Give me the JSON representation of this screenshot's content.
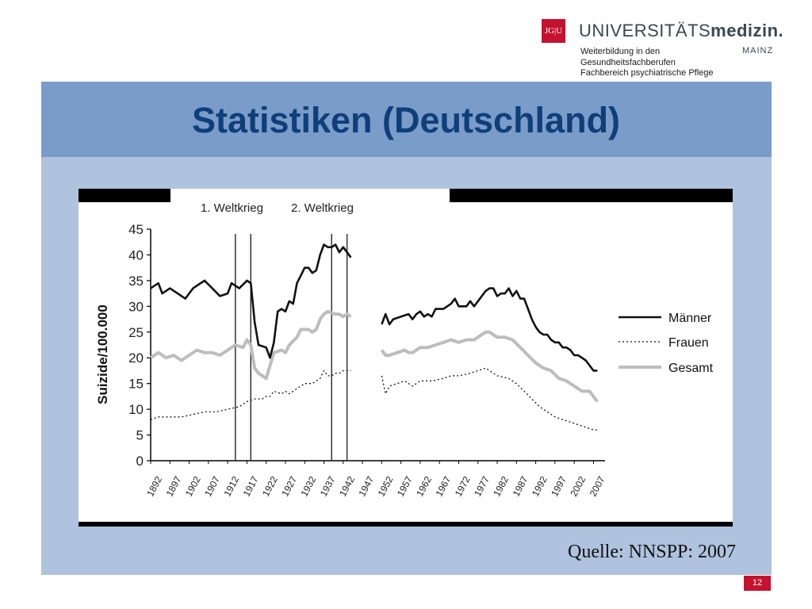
{
  "header": {
    "logo_mark": "JG|U",
    "logo_word_light": "UNIVERSITÄTS",
    "logo_word_bold": "medizin.",
    "logo_city": "MAINZ",
    "subtitle_lines": [
      "Weiterbildung in den",
      "Gesundheitsfachberufen",
      "Fachbereich psychiatrische Pflege"
    ]
  },
  "slide": {
    "title": "Statistiken (Deutschland)",
    "source": "Quelle: NNSPP: 2007",
    "page_number": "12"
  },
  "colors": {
    "title_band": "#7a9cc8",
    "content_bg": "#afc3de",
    "title_text": "#0f3f7a",
    "brand_red": "#c4122f"
  },
  "chart_data": {
    "type": "line",
    "ylabel": "Suizide/100.000",
    "xlabel": "",
    "ylim": [
      0,
      45
    ],
    "xlim": [
      1892,
      2010
    ],
    "yticks": [
      0,
      5,
      10,
      15,
      20,
      25,
      30,
      35,
      40,
      45
    ],
    "xticks": [
      1892,
      1897,
      1902,
      1907,
      1912,
      1917,
      1922,
      1927,
      1932,
      1937,
      1942,
      1947,
      1952,
      1957,
      1962,
      1967,
      1972,
      1977,
      1982,
      1987,
      1992,
      1997,
      2002,
      2007
    ],
    "annotations": [
      {
        "label": "1. Weltkrieg",
        "x_start": 1914,
        "x_end": 1918
      },
      {
        "label": "2. Weltkrieg",
        "x_start": 1939,
        "x_end": 1943
      }
    ],
    "legend_position": "right",
    "series": [
      {
        "name": "Männer",
        "style": "solid",
        "color": "#111111",
        "segments": [
          [
            [
              1892,
              33.5
            ],
            [
              1894,
              34.5
            ],
            [
              1895,
              32.5
            ],
            [
              1897,
              33.5
            ],
            [
              1899,
              32.5
            ],
            [
              1901,
              31.5
            ],
            [
              1903,
              33.5
            ],
            [
              1905,
              34.5
            ],
            [
              1906,
              35
            ],
            [
              1908,
              33.5
            ],
            [
              1910,
              32
            ],
            [
              1912,
              32.5
            ],
            [
              1913,
              34.5
            ],
            [
              1915,
              33.5
            ],
            [
              1917,
              35
            ],
            [
              1918,
              34.5
            ],
            [
              1919,
              27
            ],
            [
              1920,
              22.5
            ],
            [
              1922,
              22
            ],
            [
              1923,
              20
            ],
            [
              1924,
              23
            ],
            [
              1925,
              29
            ],
            [
              1926,
              29.5
            ],
            [
              1927,
              29
            ],
            [
              1928,
              31
            ],
            [
              1929,
              30.5
            ],
            [
              1930,
              34.5
            ],
            [
              1931,
              36
            ],
            [
              1932,
              37.5
            ],
            [
              1933,
              37.5
            ],
            [
              1934,
              36.5
            ],
            [
              1935,
              37
            ],
            [
              1936,
              40
            ],
            [
              1937,
              42
            ],
            [
              1938,
              41.5
            ],
            [
              1939,
              41.5
            ],
            [
              1940,
              42
            ],
            [
              1941,
              40.5
            ],
            [
              1942,
              41.5
            ],
            [
              1943,
              40.5
            ],
            [
              1944,
              39.5
            ]
          ],
          [
            [
              1952,
              26.5
            ],
            [
              1953,
              28.5
            ],
            [
              1954,
              26.5
            ],
            [
              1955,
              27.5
            ],
            [
              1957,
              28
            ],
            [
              1959,
              28.5
            ],
            [
              1960,
              27.5
            ],
            [
              1961,
              28.5
            ],
            [
              1962,
              29
            ],
            [
              1963,
              28
            ],
            [
              1964,
              28.5
            ],
            [
              1965,
              28
            ],
            [
              1966,
              29.5
            ],
            [
              1968,
              29.5
            ],
            [
              1970,
              30.5
            ],
            [
              1971,
              31.5
            ],
            [
              1972,
              30
            ],
            [
              1974,
              30
            ],
            [
              1975,
              31
            ],
            [
              1976,
              30
            ],
            [
              1977,
              31
            ],
            [
              1978,
              32
            ],
            [
              1979,
              33
            ],
            [
              1980,
              33.5
            ],
            [
              1981,
              33.5
            ],
            [
              1982,
              32
            ],
            [
              1983,
              32.5
            ],
            [
              1984,
              32.5
            ],
            [
              1985,
              33.5
            ],
            [
              1986,
              32
            ],
            [
              1987,
              33
            ],
            [
              1988,
              31.5
            ],
            [
              1989,
              31.5
            ],
            [
              1990,
              29.5
            ],
            [
              1991,
              27.5
            ],
            [
              1992,
              26
            ],
            [
              1993,
              25
            ],
            [
              1994,
              24.5
            ],
            [
              1995,
              24.5
            ],
            [
              1996,
              23.5
            ],
            [
              1997,
              23
            ],
            [
              1998,
              23
            ],
            [
              1999,
              22
            ],
            [
              2000,
              22
            ],
            [
              2001,
              21.5
            ],
            [
              2002,
              20.5
            ],
            [
              2003,
              20.5
            ],
            [
              2004,
              20
            ],
            [
              2005,
              19.5
            ],
            [
              2006,
              18.5
            ],
            [
              2007,
              17.5
            ],
            [
              2008,
              17.5
            ]
          ]
        ]
      },
      {
        "name": "Frauen",
        "style": "dotted",
        "color": "#111111",
        "segments": [
          [
            [
              1892,
              8
            ],
            [
              1894,
              8.5
            ],
            [
              1897,
              8.5
            ],
            [
              1900,
              8.5
            ],
            [
              1903,
              9
            ],
            [
              1906,
              9.5
            ],
            [
              1909,
              9.5
            ],
            [
              1912,
              10
            ],
            [
              1915,
              10.5
            ],
            [
              1917,
              11.5
            ],
            [
              1919,
              12
            ],
            [
              1921,
              12
            ],
            [
              1922,
              12.5
            ],
            [
              1923,
              12.5
            ],
            [
              1924,
              13.5
            ],
            [
              1926,
              13
            ],
            [
              1927,
              13.5
            ],
            [
              1928,
              13
            ],
            [
              1929,
              13.5
            ],
            [
              1930,
              14
            ],
            [
              1932,
              15
            ],
            [
              1934,
              15
            ],
            [
              1936,
              16
            ],
            [
              1937,
              17.5
            ],
            [
              1938,
              16.5
            ],
            [
              1939,
              16.5
            ],
            [
              1940,
              17
            ],
            [
              1941,
              17
            ],
            [
              1942,
              17.5
            ],
            [
              1944,
              17.5
            ]
          ],
          [
            [
              1952,
              16.5
            ],
            [
              1953,
              13
            ],
            [
              1954,
              14.5
            ],
            [
              1956,
              15
            ],
            [
              1958,
              15.5
            ],
            [
              1960,
              14.5
            ],
            [
              1962,
              15.5
            ],
            [
              1965,
              15.5
            ],
            [
              1968,
              16
            ],
            [
              1970,
              16.5
            ],
            [
              1972,
              16.5
            ],
            [
              1975,
              17
            ],
            [
              1977,
              17.5
            ],
            [
              1979,
              18
            ],
            [
              1980,
              17.5
            ],
            [
              1982,
              16.5
            ],
            [
              1985,
              16
            ],
            [
              1987,
              15
            ],
            [
              1989,
              13.5
            ],
            [
              1991,
              12
            ],
            [
              1993,
              10.5
            ],
            [
              1995,
              9.5
            ],
            [
              1997,
              8.5
            ],
            [
              1999,
              8
            ],
            [
              2001,
              7.5
            ],
            [
              2003,
              7
            ],
            [
              2005,
              6.5
            ],
            [
              2007,
              6
            ],
            [
              2008,
              6
            ]
          ]
        ]
      },
      {
        "name": "Gesamt",
        "style": "solid-thick",
        "color": "#bdbdbd",
        "segments": [
          [
            [
              1892,
              20
            ],
            [
              1894,
              21
            ],
            [
              1896,
              20
            ],
            [
              1898,
              20.5
            ],
            [
              1900,
              19.5
            ],
            [
              1902,
              20.5
            ],
            [
              1904,
              21.5
            ],
            [
              1906,
              21
            ],
            [
              1908,
              21
            ],
            [
              1910,
              20.5
            ],
            [
              1912,
              21.5
            ],
            [
              1914,
              22.5
            ],
            [
              1916,
              22
            ],
            [
              1917,
              23.5
            ],
            [
              1918,
              22.5
            ],
            [
              1919,
              18
            ],
            [
              1920,
              17
            ],
            [
              1922,
              16
            ],
            [
              1923,
              18.5
            ],
            [
              1924,
              21
            ],
            [
              1926,
              21.5
            ],
            [
              1927,
              21
            ],
            [
              1928,
              22.5
            ],
            [
              1930,
              24
            ],
            [
              1931,
              25.5
            ],
            [
              1933,
              25.5
            ],
            [
              1934,
              25
            ],
            [
              1935,
              25.5
            ],
            [
              1936,
              27.5
            ],
            [
              1937,
              28.5
            ],
            [
              1938,
              29
            ],
            [
              1940,
              28.5
            ],
            [
              1941,
              28.5
            ],
            [
              1942,
              28
            ],
            [
              1943,
              28.5
            ],
            [
              1944,
              28
            ]
          ],
          [
            [
              1952,
              21.5
            ],
            [
              1953,
              20.5
            ],
            [
              1954,
              20.5
            ],
            [
              1956,
              21
            ],
            [
              1958,
              21.5
            ],
            [
              1959,
              21
            ],
            [
              1960,
              21
            ],
            [
              1962,
              22
            ],
            [
              1964,
              22
            ],
            [
              1966,
              22.5
            ],
            [
              1968,
              23
            ],
            [
              1970,
              23.5
            ],
            [
              1972,
              23
            ],
            [
              1974,
              23.5
            ],
            [
              1976,
              23.5
            ],
            [
              1978,
              24.5
            ],
            [
              1979,
              25
            ],
            [
              1980,
              25
            ],
            [
              1982,
              24
            ],
            [
              1984,
              24
            ],
            [
              1986,
              23.5
            ],
            [
              1988,
              22
            ],
            [
              1990,
              20.5
            ],
            [
              1992,
              19
            ],
            [
              1994,
              18
            ],
            [
              1996,
              17.5
            ],
            [
              1998,
              16
            ],
            [
              2000,
              15.5
            ],
            [
              2002,
              14.5
            ],
            [
              2004,
              13.5
            ],
            [
              2006,
              13.5
            ],
            [
              2007,
              12.5
            ],
            [
              2008,
              11.5
            ]
          ]
        ]
      }
    ]
  }
}
